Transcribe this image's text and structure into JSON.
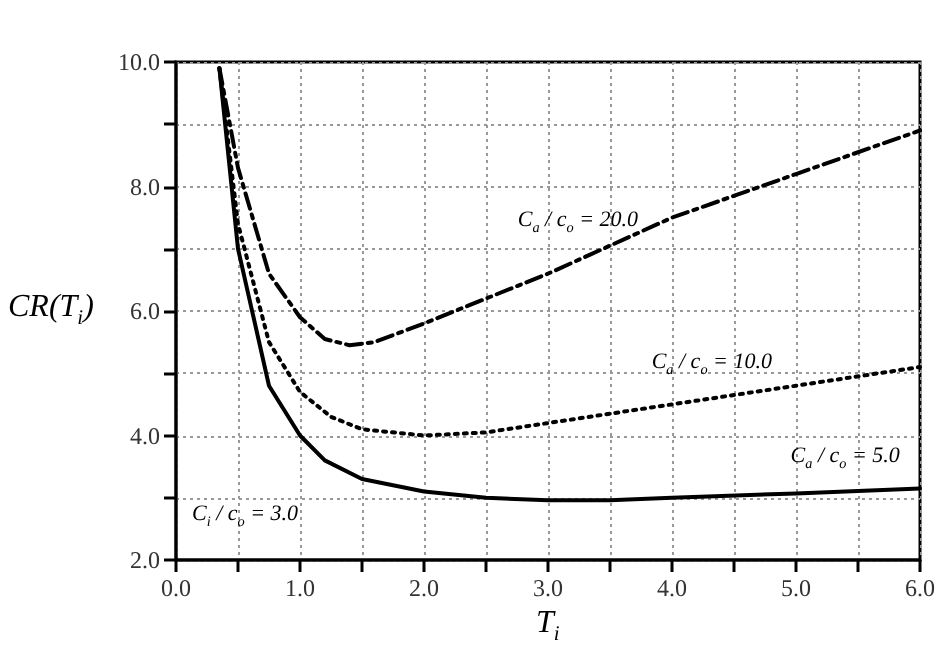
{
  "chart_data": {
    "type": "line",
    "xlabel": "T$_{i}$",
    "ylabel": "CR(T$_{i}$)",
    "xlim": [
      0,
      6
    ],
    "ylim": [
      2,
      10
    ],
    "xticks": [
      {
        "value": 0,
        "label": "0.0"
      },
      {
        "value": 0.5,
        "label": null
      },
      {
        "value": 1,
        "label": "1.0"
      },
      {
        "value": 1.5,
        "label": null
      },
      {
        "value": 2,
        "label": "2.0"
      },
      {
        "value": 2.5,
        "label": null
      },
      {
        "value": 3,
        "label": "3.0"
      },
      {
        "value": 3.5,
        "label": null
      },
      {
        "value": 4,
        "label": "4.0"
      },
      {
        "value": 4.5,
        "label": null
      },
      {
        "value": 5,
        "label": "5.0"
      },
      {
        "value": 5.5,
        "label": null
      },
      {
        "value": 6,
        "label": "6.0"
      }
    ],
    "yticks": [
      {
        "value": 2,
        "label": "2.0"
      },
      {
        "value": 3,
        "label": null
      },
      {
        "value": 4,
        "label": "4.0"
      },
      {
        "value": 5,
        "label": null
      },
      {
        "value": 6,
        "label": "6.0"
      },
      {
        "value": 7,
        "label": null
      },
      {
        "value": 8,
        "label": "8.0"
      },
      {
        "value": 9,
        "label": null
      },
      {
        "value": 10,
        "label": "10.0"
      }
    ],
    "grid": true,
    "marker": "none",
    "series": [
      {
        "name": "C$_{a}$ / c$_{o}$ = 5.0",
        "color": "#000000",
        "line_style": "solid",
        "x": [
          0.35,
          0.5,
          0.75,
          1.0,
          1.2,
          1.5,
          2.0,
          2.5,
          3.0,
          3.5,
          4.0,
          5.0,
          6.0
        ],
        "values": [
          9.9,
          7.0,
          4.8,
          4.0,
          3.6,
          3.3,
          3.1,
          3.0,
          2.96,
          2.96,
          3.0,
          3.07,
          3.15
        ]
      },
      {
        "name": "C$_{a}$ / c$_{o}$ = 10.0",
        "color": "#000000",
        "line_style": "dotted",
        "x": [
          0.35,
          0.5,
          0.75,
          1.0,
          1.25,
          1.5,
          2.0,
          2.5,
          3.0,
          4.0,
          5.0,
          6.0
        ],
        "values": [
          9.9,
          7.4,
          5.5,
          4.7,
          4.3,
          4.1,
          4.0,
          4.05,
          4.2,
          4.5,
          4.8,
          5.1
        ]
      },
      {
        "name": "C$_{a}$ / c$_{o}$ = 20.0",
        "color": "#000000",
        "line_style": "dashed",
        "x": [
          0.35,
          0.5,
          0.75,
          1.0,
          1.2,
          1.4,
          1.6,
          2.0,
          2.5,
          3.0,
          4.0,
          5.0,
          6.0
        ],
        "values": [
          9.9,
          8.3,
          6.6,
          5.9,
          5.55,
          5.45,
          5.5,
          5.8,
          6.2,
          6.6,
          7.5,
          8.2,
          8.9
        ]
      }
    ],
    "annotations": [
      "C$_{i}$ / c$_{o}$ = 3.0"
    ]
  }
}
